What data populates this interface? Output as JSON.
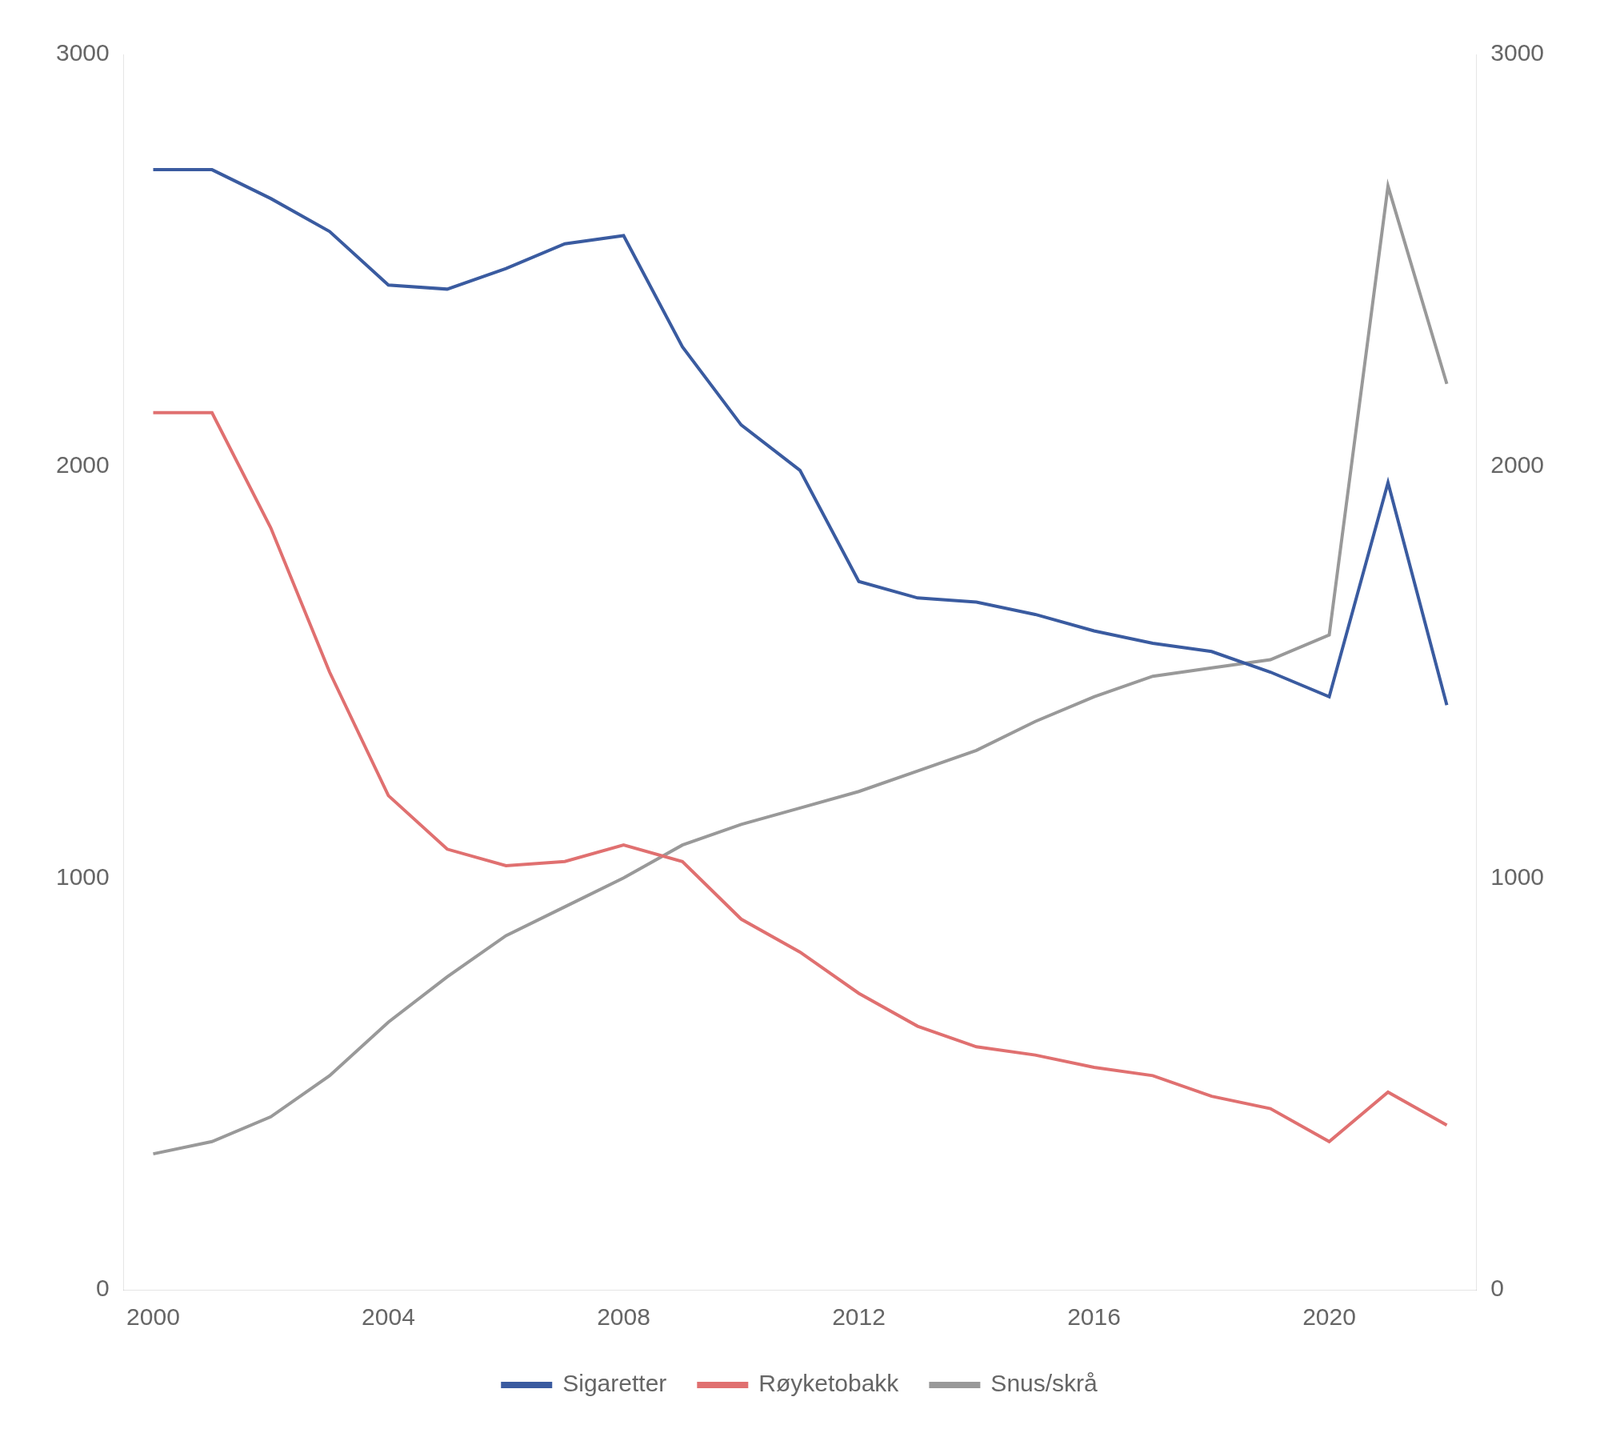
{
  "chart_data": {
    "type": "line",
    "x": [
      2000,
      2001,
      2002,
      2003,
      2004,
      2005,
      2006,
      2007,
      2008,
      2009,
      2010,
      2011,
      2012,
      2013,
      2014,
      2015,
      2016,
      2017,
      2018,
      2019,
      2020,
      2021,
      2022
    ],
    "series": [
      {
        "name": "Sigaretter",
        "color": "#3A5BA0",
        "values": [
          2720,
          2720,
          2650,
          2570,
          2440,
          2430,
          2480,
          2540,
          2560,
          2290,
          2100,
          1990,
          1720,
          1680,
          1670,
          1640,
          1600,
          1570,
          1550,
          1500,
          1440,
          1960,
          1420
        ]
      },
      {
        "name": "Røyketobakk",
        "color": "#E07070",
        "values": [
          2130,
          2130,
          1850,
          1500,
          1200,
          1070,
          1030,
          1040,
          1080,
          1040,
          900,
          820,
          720,
          640,
          590,
          570,
          540,
          520,
          470,
          440,
          360,
          480,
          400
        ]
      },
      {
        "name": "Snus/skrå",
        "color": "#999999",
        "values": [
          330,
          360,
          420,
          520,
          650,
          760,
          860,
          930,
          1000,
          1080,
          1130,
          1170,
          1210,
          1260,
          1310,
          1380,
          1440,
          1490,
          1510,
          1530,
          1590,
          2680,
          2200
        ]
      }
    ],
    "xlim": [
      1999.5,
      2022.5
    ],
    "xticks": [
      2000,
      2004,
      2008,
      2012,
      2016,
      2020
    ],
    "ylim": [
      0,
      3000
    ],
    "yticks": [
      0,
      1000,
      2000,
      3000
    ],
    "y2lim": [
      0,
      3000
    ],
    "y2ticks": [
      0,
      1000,
      2000,
      3000
    ],
    "grid": false,
    "legend": "bottom"
  }
}
